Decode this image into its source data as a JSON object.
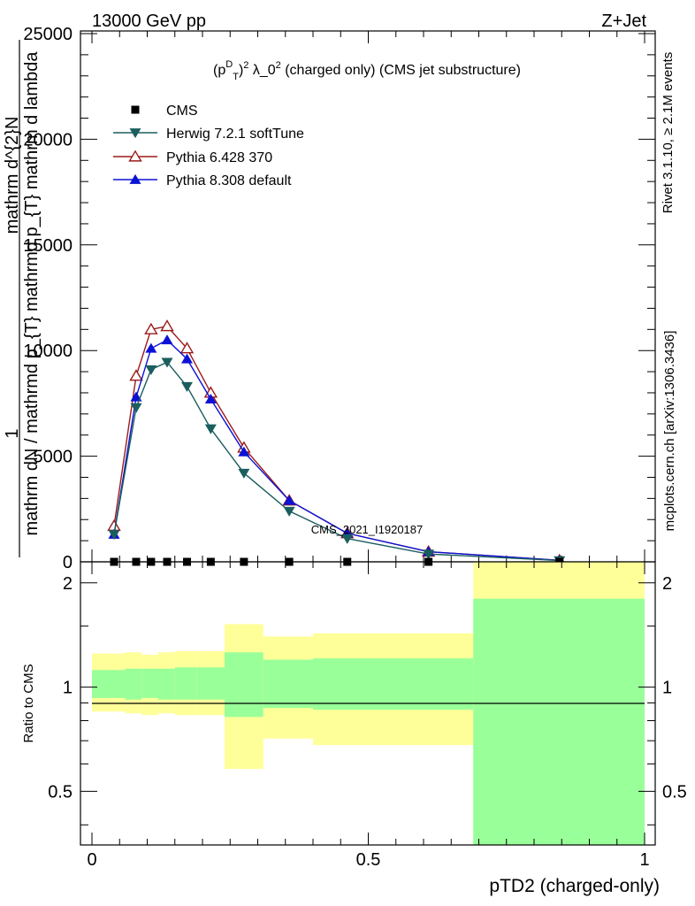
{
  "header": {
    "energy_label": "13000 GeV pp",
    "process_label": "Z+Jet"
  },
  "side_labels": {
    "rivet": "Rivet 3.1.10, ≥ 2.1M events",
    "mcplots": "mcplots.cern.ch [arXiv:1306.3436]"
  },
  "watermark": "CMS_2021_I1920187",
  "upper_ylabel": {
    "line1": "mathrm d^{2}N",
    "line2": "1",
    "line3": "mathrm dN / mathrmd p_{T} mathrmd p_{T} mathrm d lambda"
  },
  "lower_ylabel": "Ratio to CMS",
  "xlabel": "pTD2 (charged-only)",
  "chart_data": {
    "type": "line",
    "title": "(p_T^D)^2 λ_0^2 (charged only) (CMS jet substructure)",
    "title_parts": {
      "pre": "(p",
      "sub": "T",
      "sup": "D",
      "close": ")",
      "sup2": "2",
      "mid": " λ_0",
      "sup3": "2",
      "post": " (charged only) (CMS jet substructure)"
    },
    "xlabel": "pTD2 (charged-only)",
    "ylabel": "mathrm d^{2}N / mathrm dN / mathrmd p_{T} mathrmd p_{T} mathrm d lambda",
    "xlim": [
      0,
      1
    ],
    "ylim": [
      0,
      25000
    ],
    "yticks": [
      0,
      5000,
      10000,
      15000,
      20000,
      25000
    ],
    "ytick_labels": [
      "0",
      "5000",
      "10000",
      "15000",
      "20000",
      "25000"
    ],
    "ratio_ylim": [
      0.35,
      2.3
    ],
    "ratio_log": true,
    "ratio_yticks": [
      0.5,
      1,
      2
    ],
    "ratio_ytick_labels": [
      "0.5",
      "1",
      "2"
    ],
    "xticks": [
      0,
      0.5,
      1
    ],
    "xtick_labels": [
      "0",
      "0.5",
      "1"
    ],
    "legend_position": "top-left",
    "bins": [
      0.0,
      0.06,
      0.09,
      0.12,
      0.15,
      0.19,
      0.24,
      0.31,
      0.4,
      0.52,
      0.69,
      1.0
    ],
    "band_outer": [
      [
        0.85,
        1.25
      ],
      [
        0.84,
        1.26
      ],
      [
        0.83,
        1.24
      ],
      [
        0.84,
        1.26
      ],
      [
        0.83,
        1.27
      ],
      [
        0.83,
        1.27
      ],
      [
        0.58,
        1.52
      ],
      [
        0.71,
        1.4
      ],
      [
        0.68,
        1.43
      ],
      [
        0.68,
        1.43
      ],
      [
        0.35,
        2.3
      ]
    ],
    "band_inner": [
      [
        0.93,
        1.12
      ],
      [
        0.92,
        1.13
      ],
      [
        0.93,
        1.13
      ],
      [
        0.92,
        1.13
      ],
      [
        0.92,
        1.14
      ],
      [
        0.92,
        1.14
      ],
      [
        0.82,
        1.26
      ],
      [
        0.87,
        1.2
      ],
      [
        0.86,
        1.21
      ],
      [
        0.86,
        1.21
      ],
      [
        0.35,
        1.8
      ]
    ],
    "series": [
      {
        "name": "CMS",
        "marker": "square",
        "color": "#000000",
        "x": [
          0.04,
          0.08,
          0.107,
          0.136,
          0.172,
          0.215,
          0.275,
          0.357,
          0.462,
          0.609,
          0.846
        ],
        "y": [
          0,
          0,
          0,
          0,
          0,
          0,
          0,
          0,
          0,
          0,
          0
        ]
      },
      {
        "name": "Herwig 7.2.1 softTune",
        "marker": "triangle-down",
        "color": "#1b5e5e",
        "x": [
          0.04,
          0.08,
          0.107,
          0.136,
          0.172,
          0.215,
          0.275,
          0.357,
          0.462,
          0.609,
          0.846
        ],
        "y": [
          1300,
          7300,
          9100,
          9450,
          8300,
          6300,
          4200,
          2400,
          1100,
          370,
          60
        ]
      },
      {
        "name": "Pythia 6.428 370",
        "marker": "triangle-up-open",
        "color": "#9b1b1b",
        "x": [
          0.04,
          0.08,
          0.107,
          0.136,
          0.172,
          0.215,
          0.275,
          0.357,
          0.462,
          0.609,
          0.846
        ],
        "y": [
          1700,
          8800,
          11000,
          11150,
          10100,
          8000,
          5400,
          2900,
          1350,
          480,
          70
        ]
      },
      {
        "name": "Pythia 8.308 default",
        "marker": "triangle-up",
        "color": "#0b12d6",
        "x": [
          0.04,
          0.08,
          0.107,
          0.136,
          0.172,
          0.215,
          0.275,
          0.357,
          0.462,
          0.609,
          0.846
        ],
        "y": [
          1300,
          7800,
          10100,
          10500,
          9600,
          7700,
          5200,
          2900,
          1350,
          480,
          70
        ]
      }
    ]
  }
}
